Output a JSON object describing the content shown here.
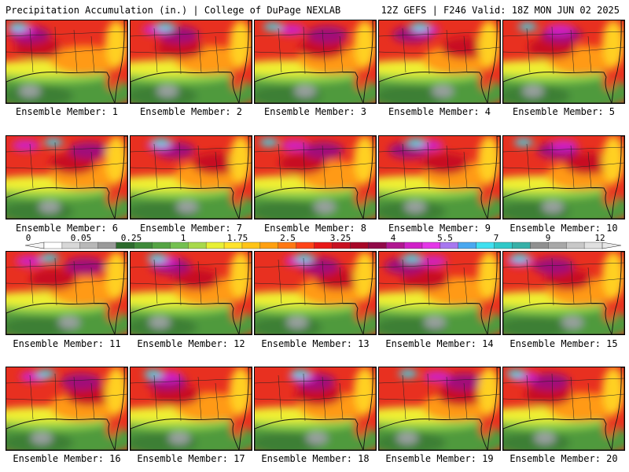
{
  "header": {
    "left": "Precipitation Accumulation (in.) | College of DuPage NEXLAB",
    "right": "12Z GEFS | F246 Valid: 18Z MON JUN 02 2025"
  },
  "members": [
    {
      "label": "Ensemble Member: 1"
    },
    {
      "label": "Ensemble Member: 2"
    },
    {
      "label": "Ensemble Member: 3"
    },
    {
      "label": "Ensemble Member: 4"
    },
    {
      "label": "Ensemble Member: 5"
    },
    {
      "label": "Ensemble Member: 6"
    },
    {
      "label": "Ensemble Member: 7"
    },
    {
      "label": "Ensemble Member: 8"
    },
    {
      "label": "Ensemble Member: 9"
    },
    {
      "label": "Ensemble Member: 10"
    },
    {
      "label": "Ensemble Member: 11"
    },
    {
      "label": "Ensemble Member: 12"
    },
    {
      "label": "Ensemble Member: 13"
    },
    {
      "label": "Ensemble Member: 14"
    },
    {
      "label": "Ensemble Member: 15"
    },
    {
      "label": "Ensemble Member: 16"
    },
    {
      "label": "Ensemble Member: 17"
    },
    {
      "label": "Ensemble Member: 18"
    },
    {
      "label": "Ensemble Member: 19"
    },
    {
      "label": "Ensemble Member: 20"
    }
  ],
  "colorbar": {
    "tick_labels": [
      "0",
      "0.05",
      "0.25",
      "1",
      "1.75",
      "2.5",
      "3.25",
      "4",
      "5.5",
      "7",
      "9",
      "12"
    ],
    "colors": [
      "#ffffff",
      "#d8d8d8",
      "#b8b8b8",
      "#9a9a9a",
      "#2d6b2d",
      "#3f8a3a",
      "#55a444",
      "#74c050",
      "#a8d94c",
      "#e8f036",
      "#ffe32a",
      "#ffc418",
      "#ffa010",
      "#ff7814",
      "#ff4418",
      "#e81818",
      "#c81020",
      "#a80828",
      "#900a48",
      "#b01690",
      "#d020c8",
      "#e438e8",
      "#a878f0",
      "#4aa8f0",
      "#40e0f0",
      "#30c8c8",
      "#38b0a8",
      "#909090",
      "#a8a8a8",
      "#c8c8c8",
      "#e0e0e0"
    ]
  }
}
